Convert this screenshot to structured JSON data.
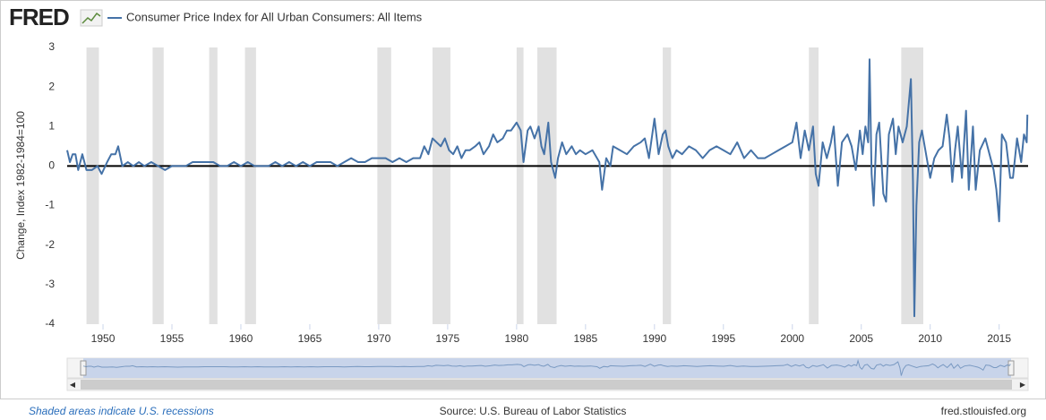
{
  "header": {
    "logo": "FRED"
  },
  "footer": {
    "note": "Shaded areas indicate U.S. recessions",
    "source": "Source: U.S. Bureau of Labor Statistics",
    "site": "fred.stlouisfed.org"
  },
  "chart_data": {
    "type": "line",
    "y_label": "Change, Index 1982-1984=100",
    "xlim": [
      1947.4,
      2017.1
    ],
    "xticks": [
      1950,
      1955,
      1960,
      1965,
      1970,
      1975,
      1980,
      1985,
      1990,
      1995,
      2000,
      2005,
      2010,
      2015
    ],
    "ylim": [
      -4,
      3
    ],
    "yticks": [
      -4,
      -3,
      -2,
      -1,
      0,
      1,
      2,
      3
    ],
    "grid": false,
    "recession_color": "#e1e1e1",
    "recessions": [
      [
        1948.8,
        1949.7
      ],
      [
        1953.6,
        1954.4
      ],
      [
        1957.7,
        1958.3
      ],
      [
        1960.3,
        1961.1
      ],
      [
        1969.9,
        1970.9
      ],
      [
        1973.9,
        1975.2
      ],
      [
        1980.0,
        1980.5
      ],
      [
        1981.5,
        1982.9
      ],
      [
        1990.6,
        1991.2
      ],
      [
        2001.2,
        2001.9
      ],
      [
        2007.9,
        2009.5
      ]
    ],
    "x": [
      1947.4,
      1947.6,
      1947.8,
      1948.0,
      1948.2,
      1948.5,
      1948.8,
      1949.2,
      1949.6,
      1949.9,
      1950.3,
      1950.6,
      1950.9,
      1951.1,
      1951.4,
      1951.8,
      1952.2,
      1952.6,
      1953.0,
      1953.5,
      1954.0,
      1954.5,
      1955.0,
      1955.5,
      1956.0,
      1956.5,
      1957.0,
      1957.5,
      1958.0,
      1958.5,
      1959.0,
      1959.5,
      1960.0,
      1960.5,
      1961.0,
      1961.5,
      1962.0,
      1962.5,
      1963.0,
      1963.5,
      1964.0,
      1964.5,
      1965.0,
      1965.5,
      1966.0,
      1966.5,
      1967.0,
      1967.5,
      1968.0,
      1968.5,
      1969.0,
      1969.5,
      1970.0,
      1970.5,
      1971.0,
      1971.5,
      1972.0,
      1972.5,
      1973.0,
      1973.3,
      1973.6,
      1973.9,
      1974.2,
      1974.5,
      1974.8,
      1975.1,
      1975.4,
      1975.7,
      1976.0,
      1976.3,
      1976.6,
      1977.0,
      1977.3,
      1977.6,
      1978.0,
      1978.3,
      1978.6,
      1979.0,
      1979.3,
      1979.6,
      1980.0,
      1980.3,
      1980.5,
      1980.8,
      1981.0,
      1981.3,
      1981.6,
      1981.8,
      1982.0,
      1982.3,
      1982.5,
      1982.8,
      1983.0,
      1983.3,
      1983.6,
      1984.0,
      1984.3,
      1984.6,
      1985.0,
      1985.5,
      1986.0,
      1986.2,
      1986.5,
      1986.8,
      1987.0,
      1987.5,
      1988.0,
      1988.5,
      1989.0,
      1989.3,
      1989.6,
      1990.0,
      1990.3,
      1990.6,
      1990.8,
      1991.0,
      1991.3,
      1991.6,
      1992.0,
      1992.5,
      1993.0,
      1993.5,
      1994.0,
      1994.5,
      1995.0,
      1995.5,
      1996.0,
      1996.5,
      1997.0,
      1997.5,
      1998.0,
      1998.5,
      1999.0,
      1999.5,
      2000.0,
      2000.3,
      2000.6,
      2000.9,
      2001.2,
      2001.5,
      2001.7,
      2001.9,
      2002.2,
      2002.5,
      2002.8,
      2003.0,
      2003.3,
      2003.6,
      2004.0,
      2004.3,
      2004.6,
      2004.9,
      2005.1,
      2005.3,
      2005.5,
      2005.6,
      2005.75,
      2005.9,
      2006.1,
      2006.3,
      2006.6,
      2006.8,
      2007.0,
      2007.3,
      2007.5,
      2007.7,
      2008.0,
      2008.3,
      2008.6,
      2008.75,
      2008.85,
      2009.0,
      2009.2,
      2009.4,
      2009.6,
      2010.0,
      2010.3,
      2010.6,
      2010.9,
      2011.2,
      2011.4,
      2011.6,
      2011.8,
      2012.0,
      2012.3,
      2012.6,
      2012.8,
      2013.1,
      2013.3,
      2013.6,
      2014.0,
      2014.3,
      2014.6,
      2014.8,
      2015.0,
      2015.2,
      2015.5,
      2015.8,
      2016.0,
      2016.3,
      2016.6,
      2016.8,
      2017.0,
      2017.05
    ],
    "series": [
      {
        "name": "Consumer Price Index for All Urban Consumers: All Items",
        "color": "#4572a7",
        "values": [
          0.4,
          0.1,
          0.3,
          0.3,
          -0.1,
          0.3,
          -0.1,
          -0.1,
          0.0,
          -0.2,
          0.1,
          0.3,
          0.3,
          0.5,
          0.0,
          0.1,
          0.0,
          0.1,
          0.0,
          0.1,
          0.0,
          -0.1,
          0.0,
          0.0,
          0.0,
          0.1,
          0.1,
          0.1,
          0.1,
          0.0,
          0.0,
          0.1,
          0.0,
          0.1,
          0.0,
          0.0,
          0.0,
          0.1,
          0.0,
          0.1,
          0.0,
          0.1,
          0.0,
          0.1,
          0.1,
          0.1,
          0.0,
          0.1,
          0.2,
          0.1,
          0.1,
          0.2,
          0.2,
          0.2,
          0.1,
          0.2,
          0.1,
          0.2,
          0.2,
          0.5,
          0.3,
          0.7,
          0.6,
          0.5,
          0.7,
          0.4,
          0.3,
          0.5,
          0.2,
          0.4,
          0.4,
          0.5,
          0.6,
          0.3,
          0.5,
          0.8,
          0.6,
          0.7,
          0.9,
          0.9,
          1.1,
          0.9,
          0.1,
          0.9,
          1.0,
          0.7,
          1.0,
          0.5,
          0.3,
          1.1,
          0.1,
          -0.3,
          0.2,
          0.6,
          0.3,
          0.5,
          0.3,
          0.4,
          0.3,
          0.4,
          0.1,
          -0.6,
          0.2,
          0.0,
          0.5,
          0.4,
          0.3,
          0.5,
          0.6,
          0.7,
          0.2,
          1.2,
          0.3,
          0.8,
          0.9,
          0.5,
          0.2,
          0.4,
          0.3,
          0.5,
          0.4,
          0.2,
          0.4,
          0.5,
          0.4,
          0.3,
          0.6,
          0.2,
          0.4,
          0.2,
          0.2,
          0.3,
          0.4,
          0.5,
          0.6,
          1.1,
          0.2,
          0.9,
          0.4,
          1.0,
          -0.2,
          -0.5,
          0.6,
          0.2,
          0.6,
          1.0,
          -0.5,
          0.6,
          0.8,
          0.5,
          -0.1,
          0.9,
          0.3,
          1.0,
          0.6,
          2.7,
          -0.2,
          -1.0,
          0.8,
          1.1,
          -0.7,
          -0.9,
          0.8,
          1.2,
          0.3,
          1.0,
          0.6,
          1.0,
          2.2,
          -0.4,
          -3.8,
          -1.0,
          0.6,
          0.9,
          0.5,
          -0.3,
          0.2,
          0.4,
          0.5,
          1.3,
          0.7,
          -0.4,
          0.4,
          1.0,
          -0.3,
          1.4,
          -0.6,
          1.0,
          -0.6,
          0.4,
          0.7,
          0.3,
          -0.1,
          -0.6,
          -1.4,
          0.8,
          0.6,
          -0.3,
          -0.3,
          0.7,
          0.1,
          0.8,
          0.6,
          1.3
        ]
      }
    ]
  }
}
